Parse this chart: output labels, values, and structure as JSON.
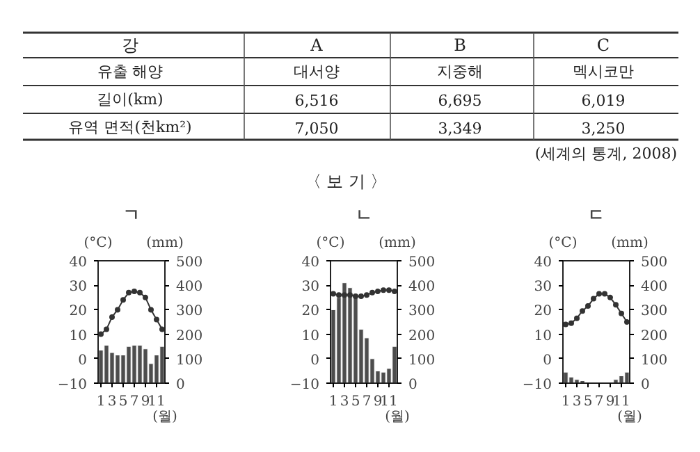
{
  "chart_data": [
    {
      "type": "other",
      "ylabel": "강",
      "categories": [
        "A",
        "B",
        "C"
      ],
      "y_categories": [
        "유출 해양",
        "길이(km)",
        "유역 면적(천km²)"
      ],
      "cell_labels": [
        [
          "대서양",
          "지중해",
          "멕시코만"
        ],
        [
          "6,516",
          "6,695",
          "6,019"
        ],
        [
          "7,050",
          "3,349",
          "3,250"
        ]
      ],
      "annotations": [
        "(세계의 통계, 2008)",
        "〈 보 기 〉"
      ]
    },
    {
      "type": "bar",
      "title": "ㄱ",
      "ylabel": "(°C)",
      "y2label": "(mm)",
      "xlabel": "(월)",
      "x": [
        1,
        2,
        3,
        4,
        5,
        6,
        7,
        8,
        9,
        10,
        11,
        12
      ],
      "xlim": [
        0.5,
        12.5
      ],
      "xticks": [
        1,
        3,
        5,
        7,
        9,
        11
      ],
      "ylim": [
        -10,
        40
      ],
      "yticks": [
        -10,
        0,
        10,
        20,
        30,
        40
      ],
      "y2lim": [
        0,
        500
      ],
      "y2ticks": [
        0,
        100,
        200,
        300,
        400,
        500
      ],
      "marker": "circle",
      "series": [
        {
          "type": "bar",
          "axis": "y2",
          "color": "#4d4d4d",
          "values": [
            135,
            155,
            125,
            115,
            115,
            150,
            155,
            155,
            140,
            80,
            115,
            150
          ]
        },
        {
          "type": "line",
          "color": "#333333",
          "values": [
            10,
            12,
            17,
            20,
            24,
            27,
            27.5,
            27,
            25,
            20,
            16,
            12
          ]
        }
      ]
    },
    {
      "type": "bar",
      "title": "ㄴ",
      "ylabel": "(°C)",
      "y2label": "(mm)",
      "xlabel": "(월)",
      "x": [
        1,
        2,
        3,
        4,
        5,
        6,
        7,
        8,
        9,
        10,
        11,
        12
      ],
      "xlim": [
        0.5,
        12.5
      ],
      "xticks": [
        1,
        3,
        5,
        7,
        9,
        11
      ],
      "ylim": [
        -10,
        40
      ],
      "yticks": [
        -10,
        0,
        10,
        20,
        30,
        40
      ],
      "y2lim": [
        0,
        500
      ],
      "y2ticks": [
        0,
        100,
        200,
        300,
        400,
        500
      ],
      "marker": "circle",
      "series": [
        {
          "type": "bar",
          "axis": "y2",
          "color": "#4d4d4d",
          "values": [
            300,
            350,
            410,
            390,
            360,
            220,
            185,
            100,
            50,
            45,
            60,
            150
          ]
        },
        {
          "type": "line",
          "color": "#333333",
          "values": [
            26.5,
            26,
            26,
            26,
            25.5,
            25.5,
            26,
            27,
            27.5,
            28,
            28,
            27.5
          ]
        }
      ]
    },
    {
      "type": "bar",
      "title": "ㄷ",
      "ylabel": "(°C)",
      "y2label": "(mm)",
      "xlabel": "(월)",
      "x": [
        1,
        2,
        3,
        4,
        5,
        6,
        7,
        8,
        9,
        10,
        11,
        12
      ],
      "xlim": [
        0.5,
        12.5
      ],
      "xticks": [
        1,
        3,
        5,
        7,
        9,
        11
      ],
      "ylim": [
        -10,
        40
      ],
      "yticks": [
        -10,
        0,
        10,
        20,
        30,
        40
      ],
      "y2lim": [
        0,
        500
      ],
      "y2ticks": [
        0,
        100,
        200,
        300,
        400,
        500
      ],
      "marker": "circle",
      "series": [
        {
          "type": "bar",
          "axis": "y2",
          "color": "#4d4d4d",
          "values": [
            45,
            25,
            15,
            10,
            2,
            1,
            1,
            1,
            2,
            15,
            30,
            45
          ]
        },
        {
          "type": "line",
          "color": "#333333",
          "values": [
            14,
            14.5,
            16.5,
            19.5,
            21.5,
            24.5,
            26.5,
            26.5,
            25,
            22,
            18.5,
            15
          ]
        }
      ]
    }
  ]
}
